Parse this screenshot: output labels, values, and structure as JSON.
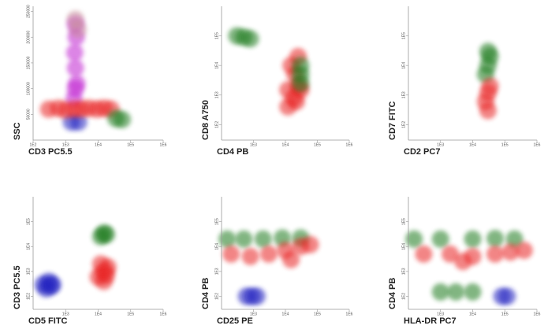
{
  "chart_data": [
    {
      "type": "scatter",
      "xlabel": "CD3 PC5.5",
      "ylabel": "SSC",
      "xlog": true,
      "ylog": false,
      "xlim": [
        100,
        1000000
      ],
      "ylim": [
        0,
        260000
      ],
      "xticks": [
        {
          "value": 100,
          "label": "1E2"
        },
        {
          "value": 1000,
          "label": "1E3"
        },
        {
          "value": 10000,
          "label": "1E4"
        },
        {
          "value": 100000,
          "label": "1E5"
        },
        {
          "value": 1000000,
          "label": "1E6"
        }
      ],
      "yticks": [
        50000,
        100000,
        150000,
        200000,
        250000
      ],
      "series": [
        {
          "color": "#c020d0",
          "x": [
            1800,
            2200,
            2000,
            1900,
            2100,
            2000,
            2000
          ],
          "values": [
            80000,
            110000,
            140000,
            170000,
            200000,
            225000,
            100000
          ]
        },
        {
          "color": "#c8909a",
          "x": [
            2400,
            2000
          ],
          "values": [
            215000,
            235000
          ]
        },
        {
          "color": "#2020c0",
          "x": [
            1500,
            2500
          ],
          "values": [
            35000,
            35000
          ]
        },
        {
          "color": "#e82020",
          "x": [
            300,
            600,
            1000,
            1800,
            3000,
            5000,
            9000,
            15000,
            25000
          ],
          "values": [
            60000,
            62000,
            58000,
            60000,
            60000,
            62000,
            60000,
            62000,
            60000
          ]
        },
        {
          "color": "#1a7a1a",
          "x": [
            35000,
            55000
          ],
          "values": [
            42000,
            40000
          ]
        }
      ]
    },
    {
      "type": "scatter",
      "xlabel": "CD4 PB",
      "ylabel": "CD8 A750",
      "xlog": true,
      "ylog": true,
      "xlim": [
        100,
        1000000
      ],
      "ylim": [
        30,
        1000000
      ],
      "xticks": [
        {
          "value": 1000,
          "label": "1E3"
        },
        {
          "value": 10000,
          "label": "1E4"
        },
        {
          "value": 100000,
          "label": "1E5"
        },
        {
          "value": 1000000,
          "label": "1E6"
        }
      ],
      "yticks": [
        {
          "value": 100,
          "label": "1E2"
        },
        {
          "value": 1000,
          "label": "1E3"
        },
        {
          "value": 10000,
          "label": "1E4"
        },
        {
          "value": 100000,
          "label": "1E5"
        }
      ],
      "series": [
        {
          "color": "#e82020",
          "x": [
            12000,
            18000,
            25000,
            20000,
            15000,
            25000,
            30000,
            12000,
            22000
          ],
          "values": [
            400,
            800,
            2000,
            5000,
            10000,
            20000,
            1500,
            1500,
            600
          ]
        },
        {
          "color": "#1a7a1a",
          "x": [
            300,
            500,
            800
          ],
          "values": [
            100000,
            90000,
            80000
          ]
        },
        {
          "color": "#1a7a1a",
          "x": [
            30000,
            30000,
            30000
          ],
          "values": [
            5000,
            2500,
            10000
          ]
        }
      ]
    },
    {
      "type": "scatter",
      "xlabel": "CD2 PC7",
      "ylabel": "CD7 FITC",
      "xlog": true,
      "ylog": true,
      "xlim": [
        100,
        1000000
      ],
      "ylim": [
        30,
        1000000
      ],
      "xticks": [
        {
          "value": 1000,
          "label": "1E3"
        },
        {
          "value": 10000,
          "label": "1E4"
        },
        {
          "value": 100000,
          "label": "1E5"
        },
        {
          "value": 1000000,
          "label": "1E6"
        }
      ],
      "yticks": [
        {
          "value": 100,
          "label": "1E2"
        },
        {
          "value": 1000,
          "label": "1E3"
        },
        {
          "value": 10000,
          "label": "1E4"
        },
        {
          "value": 100000,
          "label": "1E5"
        }
      ],
      "series": [
        {
          "color": "#1a7a1a",
          "x": [
            25000,
            30000,
            35000,
            30000
          ],
          "values": [
            5000,
            10000,
            20000,
            30000
          ]
        },
        {
          "color": "#e82020",
          "x": [
            25000,
            30000,
            35000,
            30000
          ],
          "values": [
            600,
            1200,
            2000,
            300
          ]
        }
      ]
    },
    {
      "type": "scatter",
      "xlabel": "CD5 FITC",
      "ylabel": "CD3 PC5.5",
      "xlog": true,
      "ylog": true,
      "xlim": [
        100,
        1000000
      ],
      "ylim": [
        30,
        1000000
      ],
      "xticks": [
        {
          "value": 1000,
          "label": "1E3"
        },
        {
          "value": 10000,
          "label": "1E4"
        },
        {
          "value": 100000,
          "label": "1E5"
        },
        {
          "value": 1000000,
          "label": "1E6"
        }
      ],
      "yticks": [
        {
          "value": 100,
          "label": "1E2"
        },
        {
          "value": 1000,
          "label": "1E3"
        },
        {
          "value": 10000,
          "label": "1E4"
        },
        {
          "value": 100000,
          "label": "1E5"
        }
      ],
      "series": [
        {
          "color": "#2020c0",
          "x": [
            200,
            300,
            400,
            250,
            350
          ],
          "values": [
            300,
            400,
            300,
            200,
            250
          ]
        },
        {
          "color": "#1a7a1a",
          "x": [
            12000,
            15000,
            18000
          ],
          "values": [
            25000,
            35000,
            30000
          ]
        },
        {
          "color": "#e82020",
          "x": [
            10000,
            15000,
            20000,
            12000,
            18000,
            15000
          ],
          "values": [
            600,
            1000,
            1500,
            2000,
            700,
            400
          ]
        }
      ]
    },
    {
      "type": "scatter",
      "xlabel": "CD25 PE",
      "ylabel": "CD4 PB",
      "xlog": true,
      "ylog": true,
      "xlim": [
        100,
        1000000
      ],
      "ylim": [
        30,
        1000000
      ],
      "xticks": [
        {
          "value": 1000,
          "label": "1E3"
        },
        {
          "value": 10000,
          "label": "1E4"
        },
        {
          "value": 100000,
          "label": "1E5"
        },
        {
          "value": 1000000,
          "label": "1E6"
        }
      ],
      "yticks": [
        {
          "value": 100,
          "label": "1E2"
        },
        {
          "value": 1000,
          "label": "1E3"
        },
        {
          "value": 10000,
          "label": "1E4"
        },
        {
          "value": 100000,
          "label": "1E5"
        }
      ],
      "series": [
        {
          "color": "#1a7a1a",
          "x": [
            150,
            500,
            2000,
            8000,
            30000
          ],
          "values": [
            20000,
            20000,
            20000,
            22000,
            22000
          ]
        },
        {
          "color": "#e82020",
          "x": [
            200,
            800,
            3000,
            10000,
            30000,
            60000,
            15000
          ],
          "values": [
            5000,
            4000,
            5000,
            7000,
            10000,
            12000,
            3000
          ]
        },
        {
          "color": "#2020c0",
          "x": [
            600,
            900,
            1300
          ],
          "values": [
            100,
            100,
            100
          ]
        }
      ]
    },
    {
      "type": "scatter",
      "xlabel": "HLA-DR PC7",
      "ylabel": "CD4 PB",
      "xlog": true,
      "ylog": true,
      "xlim": [
        100,
        1000000
      ],
      "ylim": [
        30,
        1000000
      ],
      "xticks": [
        {
          "value": 1000,
          "label": "1E3"
        },
        {
          "value": 10000,
          "label": "1E4"
        },
        {
          "value": 100000,
          "label": "1E5"
        },
        {
          "value": 1000000,
          "label": "1E6"
        }
      ],
      "yticks": [
        {
          "value": 100,
          "label": "1E2"
        },
        {
          "value": 1000,
          "label": "1E3"
        },
        {
          "value": 10000,
          "label": "1E4"
        },
        {
          "value": 100000,
          "label": "1E5"
        }
      ],
      "series": [
        {
          "color": "#1a7a1a",
          "x": [
            150,
            1000,
            10000,
            50000,
            200000
          ],
          "values": [
            20000,
            20000,
            20000,
            21000,
            20000
          ]
        },
        {
          "color": "#e82020",
          "x": [
            300,
            2000,
            10000,
            50000,
            150000,
            400000,
            5000
          ],
          "values": [
            5000,
            5000,
            4000,
            5000,
            6000,
            7000,
            2500
          ]
        },
        {
          "color": "#1a7a1a",
          "x": [
            1000,
            3000,
            10000
          ],
          "values": [
            150,
            150,
            150
          ]
        },
        {
          "color": "#2020c0",
          "x": [
            80000,
            120000
          ],
          "values": [
            100,
            100
          ]
        }
      ]
    }
  ]
}
